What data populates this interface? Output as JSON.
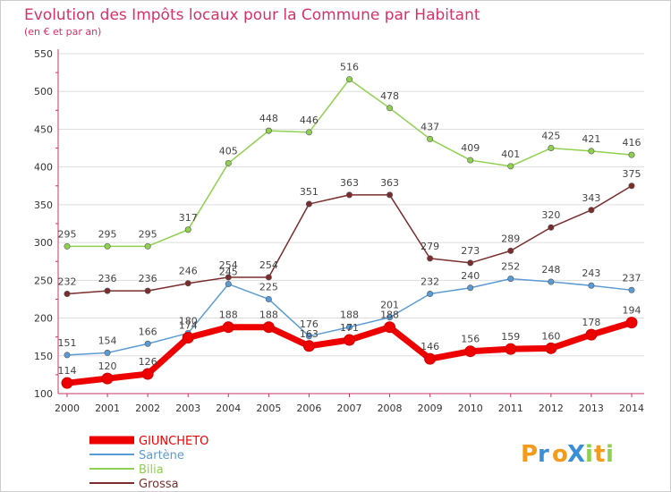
{
  "chart_data": {
    "type": "line",
    "title": "Evolution des Impôts locaux pour la Commune par Habitant",
    "subtitle": "(en € et par an)",
    "x": [
      "2000",
      "2001",
      "2002",
      "2003",
      "2004",
      "2005",
      "2006",
      "2007",
      "2008",
      "2009",
      "2010",
      "2011",
      "2012",
      "2013",
      "2014"
    ],
    "ylim": [
      100,
      550
    ],
    "yticks": [
      "100",
      "150",
      "200",
      "250",
      "300",
      "350",
      "400",
      "450",
      "500",
      "550"
    ],
    "grid": true,
    "legend_position": "bottom-left",
    "series": [
      {
        "name": "GIUNCHETO",
        "color": "#ee0000",
        "values": [
          114,
          120,
          126,
          174,
          188,
          188,
          163,
          171,
          188,
          146,
          156,
          159,
          160,
          178,
          194
        ],
        "labels": [
          "114",
          "120",
          "126",
          "174",
          "188",
          "188",
          "163",
          "171",
          "188",
          "146",
          "156",
          "159",
          "160",
          "178",
          "194"
        ]
      },
      {
        "name": "Sartène",
        "color": "#5b9bd5",
        "values": [
          151,
          154,
          166,
          180,
          245,
          225,
          176,
          188,
          201,
          232,
          240,
          252,
          248,
          243,
          237
        ],
        "labels": [
          "151",
          "154",
          "166",
          "180",
          "245",
          "225",
          "176",
          "188",
          "201",
          "232",
          "240",
          "252",
          "248",
          "243",
          "237"
        ]
      },
      {
        "name": "Bilia",
        "color": "#8fd14f",
        "values": [
          295,
          295,
          295,
          317,
          405,
          448,
          446,
          516,
          478,
          437,
          409,
          401,
          425,
          421,
          416
        ],
        "labels": [
          "295",
          "295",
          "295",
          "317",
          "405",
          "448",
          "446",
          "516",
          "478",
          "437",
          "409",
          "401",
          "425",
          "421",
          "416"
        ]
      },
      {
        "name": "Grossa",
        "color": "#7b2d2d",
        "values": [
          232,
          236,
          236,
          246,
          254,
          254,
          351,
          363,
          363,
          279,
          273,
          289,
          320,
          343,
          375
        ],
        "labels": [
          "232",
          "236",
          "236",
          "246",
          "254",
          "254",
          "351",
          "363",
          "363",
          "279",
          "273",
          "289",
          "320",
          "343",
          "375"
        ]
      }
    ]
  },
  "logo": {
    "text": "ProXiti",
    "letters": [
      "P",
      "r",
      "o",
      "X",
      "i",
      "t",
      "i"
    ],
    "colors": [
      "#f59a1b",
      "#3a8fd6",
      "#f59a1b",
      "#3a8fd6",
      "#8fd14f",
      "#f59a1b",
      "#8fd14f"
    ]
  }
}
